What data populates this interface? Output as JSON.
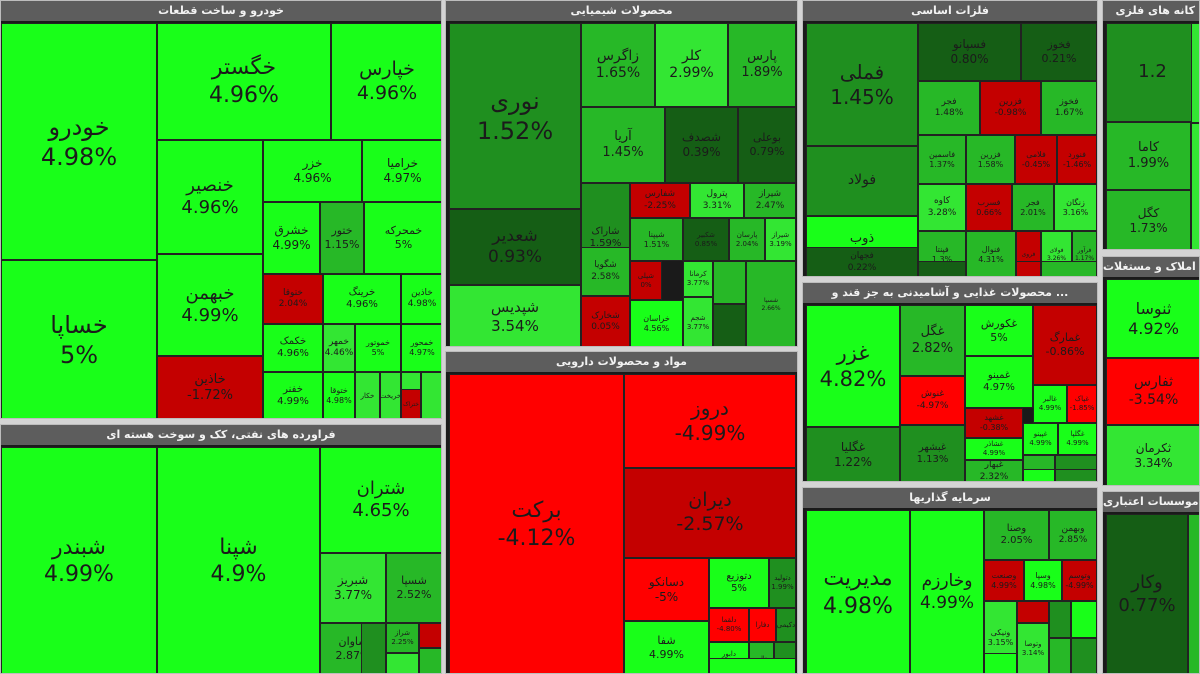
{
  "colors": {
    "strong_up": "#19ff19",
    "up": "#33e633",
    "mid_up": "#27b827",
    "weak_up": "#1f8f1f",
    "flat_up": "#155e15",
    "strong_down": "#ff0000",
    "down": "#c40000",
    "weak_down": "#8f0a0a"
  },
  "sectors": [
    {
      "title": "خودرو و ساخت قطعات",
      "tiles": [
        {
          "sym": "خودرو",
          "pct": "4.98%",
          "color": "strong_up"
        },
        {
          "sym": "خساپا",
          "pct": "5%",
          "color": "strong_up"
        },
        {
          "sym": "خگستر",
          "pct": "4.96%",
          "color": "strong_up"
        },
        {
          "sym": "خپارس",
          "pct": "4.96%",
          "color": "strong_up"
        },
        {
          "sym": "خنصیر",
          "pct": "4.96%",
          "color": "strong_up"
        },
        {
          "sym": "خبهمن",
          "pct": "4.99%",
          "color": "strong_up"
        },
        {
          "sym": "خاذین",
          "pct": "-1.72%",
          "color": "down"
        },
        {
          "sym": "خزر",
          "pct": "4.96%",
          "color": "strong_up"
        },
        {
          "sym": "خرامیا",
          "pct": "4.97%",
          "color": "strong_up"
        },
        {
          "sym": "خشرق",
          "pct": "4.99%",
          "color": "strong_up"
        },
        {
          "sym": "ختور",
          "pct": "1.15%",
          "color": "mid_up"
        },
        {
          "sym": "خمحرکه",
          "pct": "5%",
          "color": "strong_up"
        },
        {
          "sym": "ختوقا",
          "pct": "2.04%",
          "color": "down"
        },
        {
          "sym": "خرینگ",
          "pct": "4.96%",
          "color": "strong_up"
        },
        {
          "sym": "خاذین",
          "pct": "4.98%",
          "color": "strong_up"
        },
        {
          "sym": "خکمک",
          "pct": "4.96%",
          "color": "strong_up"
        },
        {
          "sym": "خمهر",
          "pct": "4.46%",
          "color": "up"
        },
        {
          "sym": "خموتور",
          "pct": "5%",
          "color": "strong_up"
        },
        {
          "sym": "خمحور",
          "pct": "4.97%",
          "color": "strong_up"
        },
        {
          "sym": "خفنر",
          "pct": "4.99%",
          "color": "strong_up"
        },
        {
          "sym": "ختوقا",
          "pct": "4.98%",
          "color": "strong_up"
        },
        {
          "sym": "خکار",
          "pct": "",
          "color": "up"
        },
        {
          "sym": "خریخت",
          "pct": "",
          "color": "up"
        },
        {
          "sym": "خچرخش",
          "pct": "",
          "color": "up"
        },
        {
          "sym": "ختراک",
          "pct": "",
          "color": "down"
        },
        {
          "sym": "",
          "pct": "",
          "color": "up"
        }
      ]
    },
    {
      "title": "محصولات شیمیایی",
      "tiles": [
        {
          "sym": "نوری",
          "pct": "1.52%",
          "color": "weak_up"
        },
        {
          "sym": "زاگرس",
          "pct": "1.65%",
          "color": "mid_up"
        },
        {
          "sym": "کلر",
          "pct": "2.99%",
          "color": "up"
        },
        {
          "sym": "پارس",
          "pct": "1.89%",
          "color": "mid_up"
        },
        {
          "sym": "آریا",
          "pct": "1.45%",
          "color": "mid_up"
        },
        {
          "sym": "شصدف",
          "pct": "0.39%",
          "color": "flat_up"
        },
        {
          "sym": "بوعلی",
          "pct": "0.79%",
          "color": "flat_up"
        },
        {
          "sym": "شعدیر",
          "pct": "0.93%",
          "color": "flat_up"
        },
        {
          "sym": "شاراک",
          "pct": "1.59%",
          "color": "weak_up"
        },
        {
          "sym": "شفارس",
          "pct": "-2.25%",
          "color": "down"
        },
        {
          "sym": "پترول",
          "pct": "3.31%",
          "color": "up"
        },
        {
          "sym": "شیراز",
          "pct": "2.47%",
          "color": "mid_up"
        },
        {
          "sym": "شپدیس",
          "pct": "3.54%",
          "color": "up"
        },
        {
          "sym": "شگویا",
          "pct": "2.58%",
          "color": "mid_up"
        },
        {
          "sym": "شیپنا",
          "pct": "1.51%",
          "color": "mid_up"
        },
        {
          "sym": "شکبیر",
          "pct": "0.85%",
          "color": "flat_up"
        },
        {
          "sym": "پارسان",
          "pct": "2.04%",
          "color": "mid_up"
        },
        {
          "sym": "شیراز",
          "pct": "3.19%",
          "color": "up"
        },
        {
          "sym": "شخارک",
          "pct": "0.05%",
          "color": "down"
        },
        {
          "sym": "شپلی",
          "pct": "0%",
          "color": "down"
        },
        {
          "sym": "خراسان",
          "pct": "4.56%",
          "color": "strong_up"
        },
        {
          "sym": "کرمانا",
          "pct": "3.77%",
          "color": "up"
        },
        {
          "sym": "شجم",
          "pct": "3.77%",
          "color": "up"
        },
        {
          "sym": "",
          "pct": "",
          "color": "mid_up"
        },
        {
          "sym": "",
          "pct": "",
          "color": "flat_up"
        },
        {
          "sym": "شسپا",
          "pct": "2.66%",
          "color": "mid_up"
        }
      ]
    },
    {
      "title": "فلزات اساسی",
      "tiles": [
        {
          "sym": "فملی",
          "pct": "1.45%",
          "color": "weak_up"
        },
        {
          "sym": "فسپانو",
          "pct": "0.80%",
          "color": "flat_up"
        },
        {
          "sym": "فخوز",
          "pct": "0.21%",
          "color": "flat_up"
        },
        {
          "sym": "فولاد",
          "pct": "",
          "color": "weak_up"
        },
        {
          "sym": "فجر",
          "pct": "1.48%",
          "color": "mid_up"
        },
        {
          "sym": "فزرین",
          "pct": "-0.98%",
          "color": "down"
        },
        {
          "sym": "فخوز",
          "pct": "1.67%",
          "color": "mid_up"
        },
        {
          "sym": "ذوب",
          "pct": "3.03%",
          "color": "strong_up"
        },
        {
          "sym": "فاسمین",
          "pct": "1.37%",
          "color": "mid_up"
        },
        {
          "sym": "فزرین",
          "pct": "1.58%",
          "color": "mid_up"
        },
        {
          "sym": "فلامی",
          "pct": "-0.45%",
          "color": "down"
        },
        {
          "sym": "فنورد",
          "pct": "-1.46%",
          "color": "down"
        },
        {
          "sym": "کاوه",
          "pct": "3.28%",
          "color": "up"
        },
        {
          "sym": "فسرب",
          "pct": "0.66%",
          "color": "down"
        },
        {
          "sym": "فجر",
          "pct": "2.01%",
          "color": "mid_up"
        },
        {
          "sym": "زنگان",
          "pct": "3.16%",
          "color": "up"
        },
        {
          "sym": "فجهان",
          "pct": "0.22%",
          "color": "flat_up"
        },
        {
          "sym": "فنوال",
          "pct": "4.31%",
          "color": "mid_up"
        },
        {
          "sym": "فروی",
          "pct": "",
          "color": "down"
        },
        {
          "sym": "فولای",
          "pct": "3.26%",
          "color": "up"
        },
        {
          "sym": "فپنتا",
          "pct": "1.3%",
          "color": "mid_up"
        },
        {
          "sym": "فرآور",
          "pct": "1.17%",
          "color": "mid_up"
        },
        {
          "sym": "",
          "pct": "",
          "color": "flat_up"
        },
        {
          "sym": "",
          "pct": "",
          "color": "down"
        },
        {
          "sym": "",
          "pct": "",
          "color": "mid_up"
        }
      ]
    },
    {
      "title": "محصولات غذایی و آشامیدنی به جز قند و ...",
      "tiles": [
        {
          "sym": "غزر",
          "pct": "4.82%",
          "color": "strong_up"
        },
        {
          "sym": "غگل",
          "pct": "2.82%",
          "color": "mid_up"
        },
        {
          "sym": "غکورش",
          "pct": "5%",
          "color": "strong_up"
        },
        {
          "sym": "غمارگ",
          "pct": "-0.86%",
          "color": "down"
        },
        {
          "sym": "غمینو",
          "pct": "4.97%",
          "color": "strong_up"
        },
        {
          "sym": "غالبر",
          "pct": "4.99%",
          "color": "strong_up"
        },
        {
          "sym": "غپاک",
          "pct": "-1.85%",
          "color": "strong_down"
        },
        {
          "sym": "غنوش",
          "pct": "-4.97%",
          "color": "strong_down"
        },
        {
          "sym": "غشهد",
          "pct": "-0.38%",
          "color": "down"
        },
        {
          "sym": "غپینو",
          "pct": "4.99%",
          "color": "strong_up"
        },
        {
          "sym": "غگلپا",
          "pct": "4.99%",
          "color": "strong_up"
        },
        {
          "sym": "غگلیا",
          "pct": "1.22%",
          "color": "weak_up"
        },
        {
          "sym": "غبشهر",
          "pct": "1.13%",
          "color": "weak_up"
        },
        {
          "sym": "غشاذر",
          "pct": "4.99%",
          "color": "strong_up"
        },
        {
          "sym": "غبهار",
          "pct": "2.32%",
          "color": "mid_up"
        },
        {
          "sym": "",
          "pct": "",
          "color": "mid_up"
        },
        {
          "sym": "",
          "pct": "",
          "color": "weak_up"
        },
        {
          "sym": "",
          "pct": "",
          "color": "strong_up"
        },
        {
          "sym": "",
          "pct": "",
          "color": "weak_up"
        }
      ]
    },
    {
      "title": "فراورده های نفتی، کک و سوخت هسته ای",
      "tiles": [
        {
          "sym": "شبندر",
          "pct": "4.99%",
          "color": "strong_up"
        },
        {
          "sym": "شپنا",
          "pct": "4.9%",
          "color": "strong_up"
        },
        {
          "sym": "شتران",
          "pct": "4.65%",
          "color": "strong_up"
        },
        {
          "sym": "شبریز",
          "pct": "3.77%",
          "color": "up"
        },
        {
          "sym": "شسپا",
          "pct": "2.52%",
          "color": "mid_up"
        },
        {
          "sym": "شاوان",
          "pct": "2.87%",
          "color": "mid_up"
        },
        {
          "sym": "شراز",
          "pct": "2.25%",
          "color": "mid_up"
        },
        {
          "sym": "",
          "pct": "",
          "color": "down"
        },
        {
          "sym": "",
          "pct": "",
          "color": "mid_up"
        },
        {
          "sym": "",
          "pct": "",
          "color": "up"
        },
        {
          "sym": "",
          "pct": "",
          "color": "weak_up"
        }
      ]
    },
    {
      "title": "مواد و محصولات دارویی",
      "tiles": [
        {
          "sym": "برکت",
          "pct": "-4.12%",
          "color": "strong_down"
        },
        {
          "sym": "دروز",
          "pct": "-4.99%",
          "color": "strong_down"
        },
        {
          "sym": "دیران",
          "pct": "-2.57%",
          "color": "down"
        },
        {
          "sym": "دسانکو",
          "pct": "-5%",
          "color": "strong_down"
        },
        {
          "sym": "دتوزیع",
          "pct": "5%",
          "color": "strong_up"
        },
        {
          "sym": "دتولید",
          "pct": "1.99%",
          "color": "weak_up"
        },
        {
          "sym": "شفا",
          "pct": "4.99%",
          "color": "strong_up"
        },
        {
          "sym": "دلقما",
          "pct": "-4.80%",
          "color": "strong_down"
        },
        {
          "sym": "دفارا",
          "pct": "",
          "color": "strong_down"
        },
        {
          "sym": "دکیمی",
          "pct": "",
          "color": "weak_up"
        },
        {
          "sym": "دابور",
          "pct": "4.96%",
          "color": "strong_up"
        },
        {
          "sym": "دالبر",
          "pct": "",
          "color": "mid_up"
        },
        {
          "sym": "",
          "pct": "",
          "color": "weak_up"
        },
        {
          "sym": "",
          "pct": "",
          "color": "strong_up"
        }
      ]
    },
    {
      "title": "سرمایه گذاریها",
      "tiles": [
        {
          "sym": "مدیریت",
          "pct": "4.98%",
          "color": "strong_up"
        },
        {
          "sym": "وخارزم",
          "pct": "4.99%",
          "color": "strong_up"
        },
        {
          "sym": "وصنا",
          "pct": "2.05%",
          "color": "mid_up"
        },
        {
          "sym": "وبهمن",
          "pct": "2.85%",
          "color": "mid_up"
        },
        {
          "sym": "وصنعت",
          "pct": "4.99%",
          "color": "down"
        },
        {
          "sym": "وسپا",
          "pct": "4.98%",
          "color": "strong_up"
        },
        {
          "sym": "وتوسم",
          "pct": "-4.99%",
          "color": "down"
        },
        {
          "sym": "ونیکی",
          "pct": "3.15%",
          "color": "up"
        },
        {
          "sym": "وتوصا",
          "pct": "3.14%",
          "color": "up"
        },
        {
          "sym": "",
          "pct": "",
          "color": "down"
        },
        {
          "sym": "",
          "pct": "",
          "color": "weak_up"
        },
        {
          "sym": "",
          "pct": "",
          "color": "strong_up"
        },
        {
          "sym": "",
          "pct": "",
          "color": "mid_up"
        },
        {
          "sym": "",
          "pct": "",
          "color": "weak_up"
        },
        {
          "sym": "",
          "pct": "",
          "color": "strong_up"
        }
      ]
    },
    {
      "title": "کانه های فلزی",
      "tiles": [
        {
          "sym": "",
          "pct": "1.2",
          "color": "weak_up"
        },
        {
          "sym": "کاما",
          "pct": "1.99%",
          "color": "mid_up"
        },
        {
          "sym": "",
          "pct": "",
          "color": "up"
        },
        {
          "sym": "کگل",
          "pct": "1.73%",
          "color": "mid_up"
        },
        {
          "sym": "",
          "pct": "",
          "color": "up"
        }
      ]
    },
    {
      "title": "انبوه سازی، املاک و مستغلات",
      "tiles": [
        {
          "sym": "ثنوسا",
          "pct": "4.92%",
          "color": "strong_up"
        },
        {
          "sym": "ثفارس",
          "pct": "-3.54%",
          "color": "strong_down"
        },
        {
          "sym": "ثکرمان",
          "pct": "3.34%",
          "color": "up"
        }
      ]
    },
    {
      "title": "موسسات اعتباری",
      "tiles": [
        {
          "sym": "وکار",
          "pct": "0.77%",
          "color": "flat_up"
        },
        {
          "sym": "",
          "pct": "",
          "color": "mid_up"
        }
      ]
    }
  ]
}
